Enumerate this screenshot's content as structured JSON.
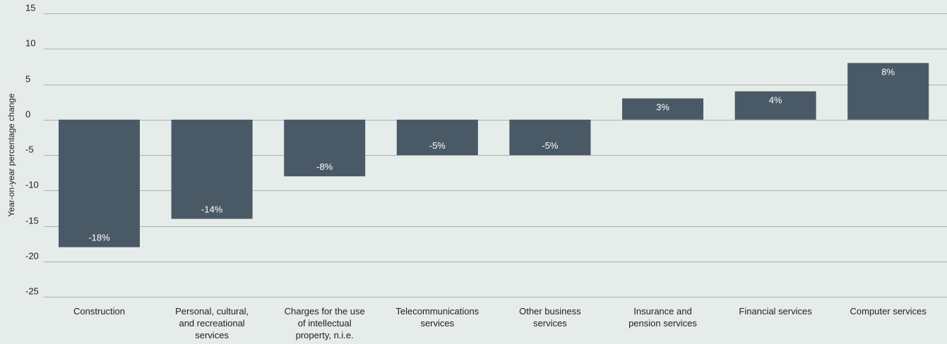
{
  "chart_data": {
    "type": "bar",
    "ylabel": "Year-on-year percentage change",
    "ylim": [
      -25,
      15
    ],
    "yticks": [
      15,
      10,
      5,
      0,
      -5,
      -10,
      -15,
      -20,
      -25
    ],
    "grid": true,
    "categories": [
      [
        "Construction"
      ],
      [
        "Personal, cultural,",
        "and recreational",
        "services"
      ],
      [
        "Charges for the use",
        "of intellectual",
        "property, n.i.e."
      ],
      [
        "Telecommunications",
        "services"
      ],
      [
        "Other business",
        "services"
      ],
      [
        "Insurance and",
        "pension services"
      ],
      [
        "Financial services"
      ],
      [
        "Computer services"
      ]
    ],
    "values": [
      -18,
      -14,
      -8,
      -5,
      -5,
      3,
      4,
      8
    ],
    "data_labels": [
      "-18%",
      "-14%",
      "-8%",
      "-5%",
      "-5%",
      "3%",
      "4%",
      "8%"
    ],
    "colors": {
      "bar": "#4a5966",
      "background": "#e5ecea",
      "grid": "#a9b0ae"
    }
  }
}
